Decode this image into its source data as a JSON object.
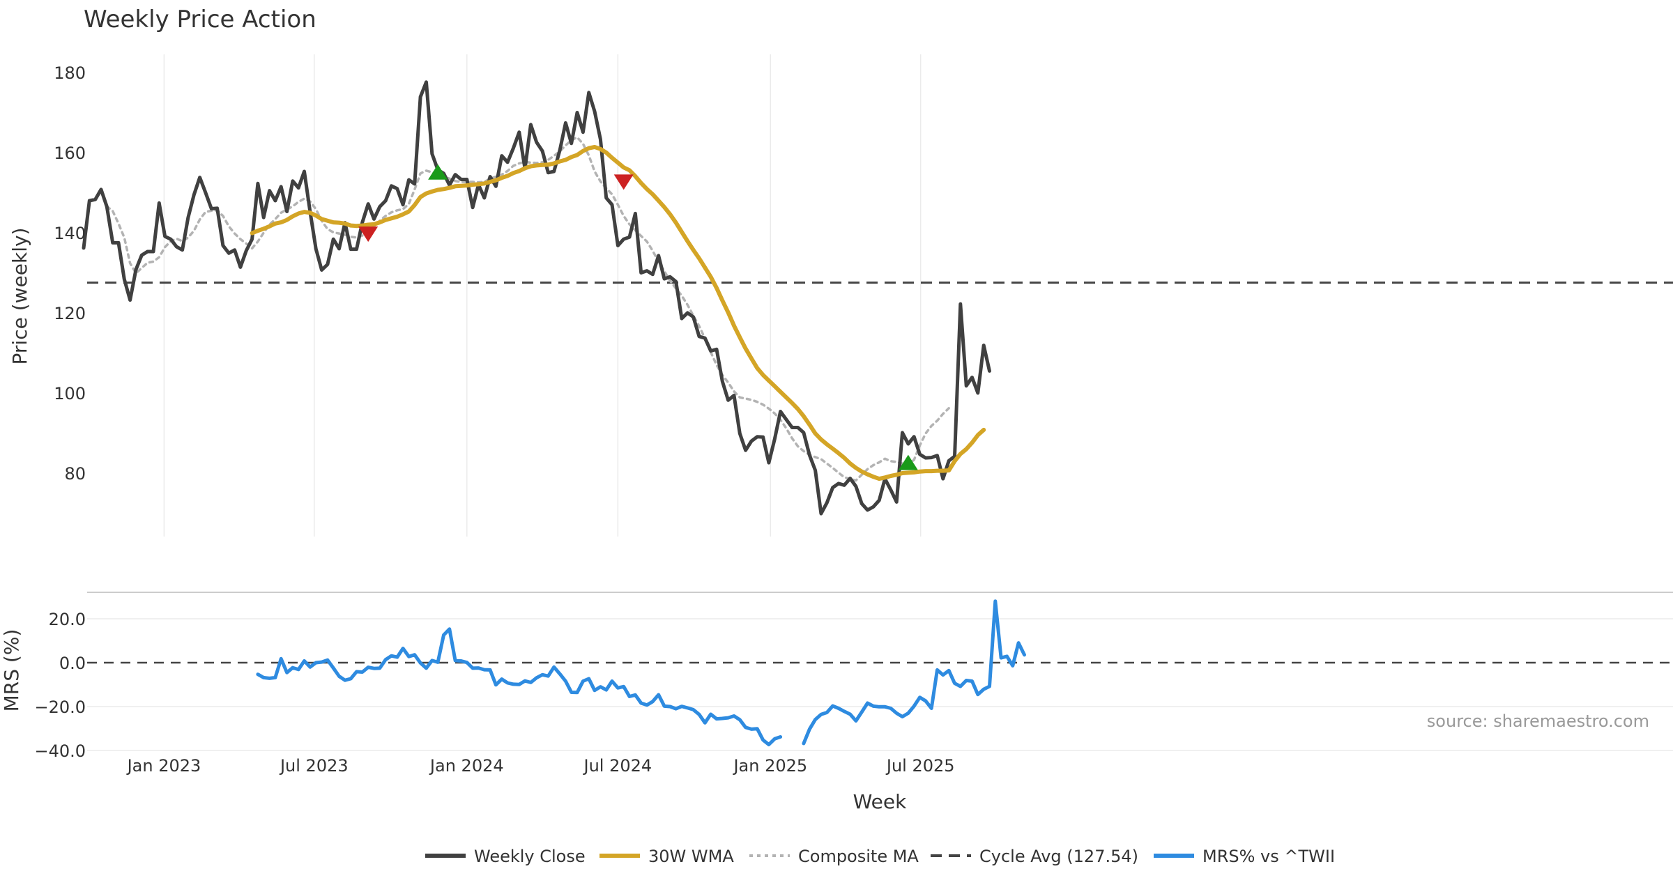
{
  "chart_data": {
    "type": "line",
    "title": "Weekly Price Action",
    "source_note": "source: sharemaestro.com",
    "xlabel": "Week",
    "x_ticks": [
      "Jan 2023",
      "Jul 2023",
      "Jan 2024",
      "Jul 2024",
      "Jan 2025",
      "Jul 2025"
    ],
    "x_start": "2022-09-26",
    "x_step_days": 7,
    "price_panel": {
      "ylabel": "Price (weekly)",
      "ylim": [
        62,
        184
      ],
      "yticks": [
        80,
        100,
        120,
        140,
        160,
        180
      ],
      "cycle_avg": 127.54,
      "series": [
        {
          "name": "Weekly Close",
          "color": "#404040",
          "offset": 0,
          "values": [
            136.2,
            148.0,
            148.3,
            150.8,
            146.5,
            137.5,
            137.5,
            128.4,
            123.2,
            130.8,
            134.4,
            135.3,
            135.3,
            147.4,
            139.1,
            138.4,
            136.5,
            135.7,
            143.8,
            149.5,
            153.8,
            150.0,
            146.0,
            146.1,
            136.8,
            134.9,
            135.7,
            131.4,
            135.5,
            138.4,
            152.3,
            143.8,
            150.5,
            148.0,
            151.5,
            145.3,
            152.9,
            151.2,
            155.3,
            145.2,
            136.0,
            130.7,
            132.1,
            138.4,
            136.0,
            142.5,
            135.9,
            135.9,
            142.6,
            147.2,
            143.4,
            146.5,
            148.0,
            151.7,
            151.0,
            147.0,
            153.2,
            152.2,
            173.9,
            177.6,
            159.7,
            155.7,
            154.8,
            151.9,
            154.5,
            153.3,
            153.3,
            146.3,
            152.0,
            148.7,
            154.0,
            151.6,
            159.2,
            157.6,
            161.1,
            165.1,
            156.0,
            167.0,
            162.6,
            160.4,
            155.0,
            155.3,
            160.6,
            167.4,
            162.3,
            170.0,
            165.1,
            175.0,
            170.3,
            163.3,
            148.7,
            147.0,
            136.8,
            138.4,
            138.9,
            144.8,
            130.0,
            130.5,
            129.6,
            134.3,
            128.5,
            129.0,
            127.8,
            118.6,
            120.0,
            119.0,
            114.1,
            113.7,
            110.5,
            110.9,
            102.9,
            98.2,
            99.4,
            89.9,
            85.7,
            88.0,
            89.1,
            89.0,
            82.6,
            88.5,
            95.4,
            93.4,
            91.4,
            91.4,
            90.1,
            84.5,
            80.7,
            69.9,
            72.6,
            76.4,
            77.4,
            77.0,
            78.7,
            76.7,
            72.4,
            70.8,
            71.6,
            73.2,
            78.6,
            75.8,
            72.8,
            90.1,
            87.3,
            89.1,
            84.7,
            83.8,
            83.9,
            84.4,
            78.6,
            83.1,
            84.2,
            122.2,
            101.8,
            103.9,
            100.0,
            111.9,
            105.5
          ]
        },
        {
          "name": "30W WMA",
          "color": "#d4a526",
          "offset": 29,
          "values": [
            139.9,
            140.5,
            141.0,
            141.6,
            142.3,
            142.6,
            143.2,
            144.1,
            144.8,
            145.2,
            145.0,
            144.3,
            143.4,
            143.0,
            142.6,
            142.5,
            142.3,
            141.8,
            141.7,
            141.8,
            142.0,
            142.1,
            142.6,
            143.2,
            143.6,
            144.0,
            144.6,
            145.3,
            146.9,
            148.9,
            149.8,
            150.3,
            150.7,
            150.9,
            151.2,
            151.6,
            151.7,
            151.8,
            152.0,
            152.1,
            152.3,
            152.7,
            153.1,
            153.7,
            154.2,
            154.9,
            155.4,
            156.1,
            156.6,
            156.8,
            156.9,
            157.0,
            157.3,
            157.8,
            158.2,
            158.9,
            159.4,
            160.4,
            161.1,
            161.4,
            160.9,
            160.0,
            158.7,
            157.5,
            156.3,
            155.6,
            154.1,
            152.4,
            150.9,
            149.6,
            148.0,
            146.4,
            144.6,
            142.5,
            140.2,
            137.9,
            135.7,
            133.6,
            131.3,
            129.0,
            126.2,
            123.1,
            120.1,
            116.8,
            113.9,
            111.1,
            108.6,
            106.2,
            104.5,
            103.1,
            101.7,
            100.3,
            98.9,
            97.5,
            96.0,
            94.2,
            92.1,
            89.9,
            88.4,
            87.2,
            86.1,
            85.0,
            83.8,
            82.4,
            81.3,
            80.4,
            79.7,
            79.1,
            78.6,
            78.9,
            79.3,
            79.6,
            80.0,
            80.1,
            80.2,
            80.4,
            80.5,
            80.5,
            80.6,
            80.6,
            80.7,
            83.0,
            84.8,
            86.0,
            87.6,
            89.5,
            90.8
          ]
        },
        {
          "name": "Composite MA",
          "color": "#b3b3b3",
          "offset": 4,
          "values": [
            146.6,
            145.4,
            142.3,
            138.8,
            132.4,
            129.9,
            131.2,
            132.5,
            132.8,
            133.9,
            136.4,
            137.9,
            138.5,
            137.9,
            138.8,
            140.5,
            143.3,
            145.2,
            145.5,
            145.6,
            144.2,
            141.6,
            139.8,
            138.4,
            137.3,
            136.1,
            137.8,
            140.0,
            142.0,
            143.4,
            145.0,
            145.8,
            146.6,
            147.7,
            148.5,
            147.8,
            145.9,
            143.0,
            140.9,
            140.1,
            139.8,
            139.5,
            139.0,
            138.8,
            139.3,
            140.4,
            141.5,
            143.0,
            144.2,
            145.1,
            145.6,
            145.9,
            147.2,
            150.8,
            154.8,
            155.5,
            155.1,
            154.7,
            154.1,
            153.5,
            152.9,
            152.7,
            152.7,
            152.7,
            152.6,
            152.7,
            153.5,
            154.0,
            154.5,
            155.4,
            156.7,
            157.3,
            157.7,
            157.5,
            157.4,
            157.6,
            158.2,
            159.2,
            160.3,
            161.8,
            163.1,
            163.8,
            162.2,
            159.3,
            155.3,
            152.8,
            151.1,
            149.6,
            147.0,
            144.2,
            142.1,
            140.6,
            139.2,
            137.8,
            135.5,
            132.8,
            130.4,
            128.0,
            126.1,
            124.3,
            122.0,
            119.3,
            116.7,
            113.6,
            110.2,
            107.0,
            104.5,
            102.6,
            100.4,
            98.9,
            98.6,
            98.3,
            97.8,
            97.1,
            96.1,
            94.9,
            93.3,
            91.2,
            88.7,
            86.7,
            85.5,
            84.6,
            84.0,
            83.5,
            82.4,
            81.3,
            80.1,
            79.0,
            78.5,
            78.2,
            79.6,
            81.0,
            82.0,
            82.7,
            83.6,
            83.0,
            82.8,
            82.4,
            82.3,
            83.3,
            86.9,
            89.9,
            91.8,
            93.1,
            94.8,
            96.2
          ]
        }
      ],
      "markers": [
        {
          "type": "down",
          "color": "#cc2222",
          "x_index": 49,
          "value": 139.8
        },
        {
          "type": "up",
          "color": "#1a9a1a",
          "x_index": 61,
          "value": 155.0
        },
        {
          "type": "down",
          "color": "#cc2222",
          "x_index": 93,
          "value": 152.8
        },
        {
          "type": "up",
          "color": "#1a9a1a",
          "x_index": 142,
          "value": 82.5
        }
      ]
    },
    "mrs_panel": {
      "ylabel": "MRS (%)",
      "ylim": [
        -40,
        32
      ],
      "yticks": [
        "20.0",
        "0.0",
        "−20.0",
        "−40.0"
      ],
      "ytick_values": [
        20,
        0,
        -20,
        -40
      ],
      "zero_line": 0,
      "series": [
        {
          "name": "MRS% vs ^TWII",
          "color": "#2e8be0",
          "segments": [
            {
              "offset": 30,
              "values": [
                -5.3,
                -6.8,
                -7.1,
                -6.8,
                1.8,
                -4.5,
                -2.3,
                -3.1,
                0.8,
                -2.0,
                0.0,
                0.3,
                1.2,
                -2.4,
                -6.2,
                -8.0,
                -7.3,
                -4.1,
                -4.3,
                -2.1,
                -2.6,
                -2.5,
                1.4,
                3.1,
                2.5,
                6.5,
                2.8,
                3.6,
                -0.1,
                -2.5,
                1.0,
                0.2,
                12.6,
                15.3,
                1.0,
                0.8,
                0.1,
                -2.5,
                -2.4,
                -3.2,
                -3.3,
                -10.1,
                -7.5,
                -9.2,
                -9.8,
                -9.9,
                -8.3,
                -9.0,
                -6.9,
                -5.5,
                -6.1,
                -2.0,
                -5.1,
                -8.4,
                -13.5,
                -13.6,
                -8.4,
                -7.3,
                -12.6,
                -11.0,
                -12.4,
                -8.4,
                -11.5,
                -10.9,
                -15.4,
                -14.7,
                -18.4,
                -19.3,
                -17.7,
                -14.6,
                -19.8,
                -20.0,
                -21.0,
                -19.9,
                -20.6,
                -21.4,
                -23.6,
                -27.4,
                -23.5,
                -25.6,
                -25.4,
                -25.1,
                -24.3,
                -26.0,
                -29.5,
                -30.3,
                -30.1,
                -35.2,
                -37.3,
                -34.7,
                -33.8
              ]
            },
            {
              "offset": 124,
              "values": [
                -36.8,
                -30.3,
                -25.9,
                -23.6,
                -22.7,
                -19.7,
                -20.8,
                -22.2,
                -23.5,
                -26.5,
                -22.5,
                -18.4,
                -19.8,
                -20.1,
                -20.1,
                -20.8,
                -23.0,
                -24.6,
                -23.0,
                -19.8,
                -15.8,
                -17.4,
                -20.8,
                -3.3,
                -5.6,
                -3.6,
                -9.4,
                -10.8,
                -8.1,
                -8.4,
                -14.5,
                -12.1,
                -10.8,
                28.0,
                2.2,
                2.9,
                -1.4,
                9.0,
                3.6
              ]
            }
          ]
        }
      ]
    },
    "legend": [
      {
        "label": "Weekly Close",
        "style": "solid",
        "color": "#404040"
      },
      {
        "label": "30W WMA",
        "style": "solid",
        "color": "#d4a526"
      },
      {
        "label": "Composite MA",
        "style": "dotted",
        "color": "#b3b3b3"
      },
      {
        "label": "Cycle Avg (127.54)",
        "style": "dashed",
        "color": "#444444"
      },
      {
        "label": "MRS% vs ^TWII",
        "style": "solid",
        "color": "#2e8be0"
      }
    ]
  }
}
